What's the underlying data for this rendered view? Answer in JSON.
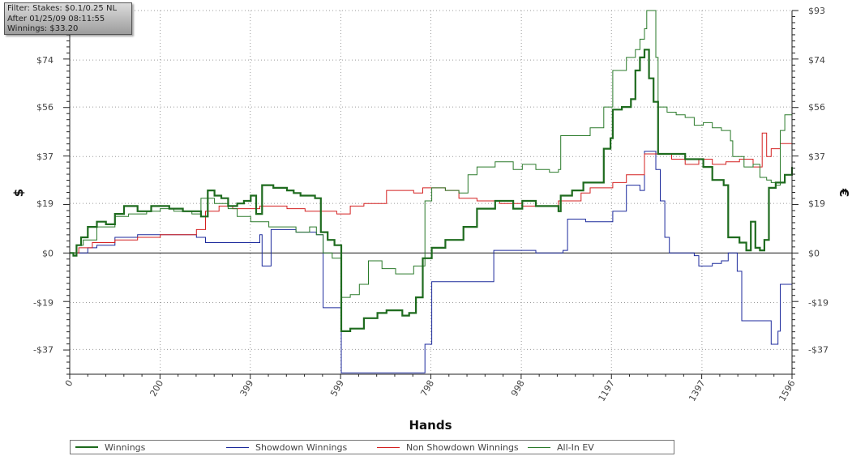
{
  "info_box": {
    "filter": "Filter: Stakes: $0.1/0.25 NL",
    "after": "After 01/25/09 08:11:55",
    "winnings": "Winnings: $33.20"
  },
  "chart_data": {
    "type": "line",
    "xlabel": "Hands",
    "ylabel_left": "$",
    "ylabel_right": "€",
    "xlim": [
      0,
      1596
    ],
    "ylim": [
      -46.5,
      93
    ],
    "x_ticks": [
      0,
      200,
      399,
      599,
      798,
      998,
      1197,
      1397,
      1596
    ],
    "y_ticks": [
      -37,
      -19,
      0,
      19,
      37,
      56,
      74,
      93
    ],
    "y_tick_labels": [
      "-$37",
      "-$19",
      "$0",
      "$19",
      "$37",
      "$56",
      "$74",
      "$93"
    ],
    "grid": true,
    "legend_position": "bottom",
    "series": [
      {
        "name": "Winnings",
        "color": "#1e6b1e",
        "points": [
          [
            0,
            0
          ],
          [
            8,
            -1
          ],
          [
            15,
            3
          ],
          [
            25,
            6
          ],
          [
            40,
            10
          ],
          [
            60,
            12
          ],
          [
            80,
            11
          ],
          [
            100,
            15
          ],
          [
            120,
            18
          ],
          [
            150,
            16
          ],
          [
            180,
            18
          ],
          [
            200,
            18
          ],
          [
            220,
            17
          ],
          [
            250,
            16
          ],
          [
            290,
            14
          ],
          [
            305,
            24
          ],
          [
            320,
            22
          ],
          [
            335,
            21
          ],
          [
            350,
            18
          ],
          [
            370,
            19
          ],
          [
            385,
            20
          ],
          [
            400,
            22
          ],
          [
            412,
            15
          ],
          [
            425,
            26
          ],
          [
            450,
            25
          ],
          [
            480,
            24
          ],
          [
            495,
            23
          ],
          [
            510,
            22
          ],
          [
            542,
            21
          ],
          [
            555,
            8
          ],
          [
            570,
            5
          ],
          [
            585,
            3
          ],
          [
            600,
            -30
          ],
          [
            620,
            -29
          ],
          [
            650,
            -25
          ],
          [
            680,
            -23
          ],
          [
            700,
            -22
          ],
          [
            735,
            -24
          ],
          [
            750,
            -23
          ],
          [
            765,
            -17
          ],
          [
            780,
            -2
          ],
          [
            800,
            2
          ],
          [
            830,
            5
          ],
          [
            845,
            5
          ],
          [
            870,
            10
          ],
          [
            900,
            17
          ],
          [
            940,
            20
          ],
          [
            980,
            17
          ],
          [
            1000,
            20
          ],
          [
            1030,
            18
          ],
          [
            1080,
            16
          ],
          [
            1085,
            22
          ],
          [
            1110,
            24
          ],
          [
            1135,
            27
          ],
          [
            1160,
            27
          ],
          [
            1180,
            40
          ],
          [
            1195,
            44
          ],
          [
            1200,
            55
          ],
          [
            1220,
            56
          ],
          [
            1240,
            59
          ],
          [
            1250,
            70
          ],
          [
            1260,
            75
          ],
          [
            1270,
            78
          ],
          [
            1280,
            67
          ],
          [
            1290,
            58
          ],
          [
            1300,
            38
          ],
          [
            1340,
            38
          ],
          [
            1360,
            36
          ],
          [
            1400,
            33
          ],
          [
            1420,
            28
          ],
          [
            1445,
            26
          ],
          [
            1455,
            6
          ],
          [
            1480,
            4
          ],
          [
            1495,
            1
          ],
          [
            1505,
            12
          ],
          [
            1515,
            2
          ],
          [
            1525,
            1
          ],
          [
            1535,
            5
          ],
          [
            1545,
            25
          ],
          [
            1560,
            27
          ],
          [
            1580,
            30
          ],
          [
            1596,
            33
          ]
        ]
      },
      {
        "name": "Showdown Winnings",
        "color": "#1c2a9c",
        "points": [
          [
            0,
            0
          ],
          [
            40,
            2
          ],
          [
            60,
            3
          ],
          [
            100,
            6
          ],
          [
            150,
            7
          ],
          [
            200,
            7
          ],
          [
            280,
            6
          ],
          [
            300,
            4
          ],
          [
            350,
            4
          ],
          [
            400,
            4
          ],
          [
            420,
            7
          ],
          [
            425,
            -5
          ],
          [
            440,
            -5
          ],
          [
            445,
            9
          ],
          [
            480,
            9
          ],
          [
            500,
            8
          ],
          [
            520,
            8
          ],
          [
            545,
            7
          ],
          [
            560,
            -21
          ],
          [
            580,
            -21
          ],
          [
            595,
            -21
          ],
          [
            600,
            -46
          ],
          [
            700,
            -46
          ],
          [
            750,
            -46
          ],
          [
            775,
            -46
          ],
          [
            785,
            -35
          ],
          [
            800,
            -11
          ],
          [
            900,
            -11
          ],
          [
            920,
            -11
          ],
          [
            937,
            1
          ],
          [
            980,
            1
          ],
          [
            1030,
            0
          ],
          [
            1080,
            0
          ],
          [
            1090,
            1
          ],
          [
            1100,
            13
          ],
          [
            1140,
            12
          ],
          [
            1190,
            12
          ],
          [
            1200,
            16
          ],
          [
            1230,
            26
          ],
          [
            1240,
            26
          ],
          [
            1260,
            24
          ],
          [
            1270,
            39
          ],
          [
            1290,
            39
          ],
          [
            1295,
            32
          ],
          [
            1305,
            20
          ],
          [
            1315,
            6
          ],
          [
            1325,
            0
          ],
          [
            1360,
            0
          ],
          [
            1380,
            -1
          ],
          [
            1390,
            -5
          ],
          [
            1420,
            -4
          ],
          [
            1440,
            -3
          ],
          [
            1455,
            0
          ],
          [
            1465,
            0
          ],
          [
            1475,
            -7
          ],
          [
            1485,
            -26
          ],
          [
            1510,
            -26
          ],
          [
            1540,
            -26
          ],
          [
            1550,
            -35
          ],
          [
            1565,
            -30
          ],
          [
            1570,
            -12
          ],
          [
            1596,
            -12
          ]
        ]
      },
      {
        "name": "Non Showdown Winnings",
        "color": "#d42020",
        "points": [
          [
            0,
            0
          ],
          [
            20,
            2
          ],
          [
            50,
            4
          ],
          [
            100,
            5
          ],
          [
            150,
            6
          ],
          [
            200,
            7
          ],
          [
            280,
            9
          ],
          [
            300,
            16
          ],
          [
            330,
            18
          ],
          [
            360,
            17
          ],
          [
            400,
            17
          ],
          [
            420,
            18
          ],
          [
            480,
            17
          ],
          [
            520,
            16
          ],
          [
            560,
            16
          ],
          [
            590,
            15
          ],
          [
            620,
            18
          ],
          [
            650,
            19
          ],
          [
            700,
            24
          ],
          [
            760,
            23
          ],
          [
            780,
            25
          ],
          [
            800,
            25
          ],
          [
            830,
            24
          ],
          [
            860,
            21
          ],
          [
            900,
            20
          ],
          [
            950,
            19
          ],
          [
            1000,
            18
          ],
          [
            1030,
            18
          ],
          [
            1060,
            18
          ],
          [
            1080,
            20
          ],
          [
            1110,
            20
          ],
          [
            1130,
            23
          ],
          [
            1150,
            25
          ],
          [
            1180,
            25
          ],
          [
            1200,
            27
          ],
          [
            1230,
            30
          ],
          [
            1270,
            38
          ],
          [
            1300,
            38
          ],
          [
            1330,
            36
          ],
          [
            1360,
            34
          ],
          [
            1390,
            36
          ],
          [
            1420,
            34
          ],
          [
            1450,
            35
          ],
          [
            1470,
            35
          ],
          [
            1480,
            36
          ],
          [
            1510,
            33
          ],
          [
            1530,
            46
          ],
          [
            1540,
            37
          ],
          [
            1550,
            40
          ],
          [
            1570,
            42
          ],
          [
            1596,
            46
          ]
        ]
      },
      {
        "name": "All-In EV",
        "color": "#2a7a2a",
        "points": [
          [
            0,
            0
          ],
          [
            15,
            3
          ],
          [
            30,
            5
          ],
          [
            60,
            10
          ],
          [
            100,
            14
          ],
          [
            130,
            15
          ],
          [
            170,
            16
          ],
          [
            200,
            17
          ],
          [
            230,
            16
          ],
          [
            270,
            15
          ],
          [
            290,
            21
          ],
          [
            320,
            19
          ],
          [
            350,
            17
          ],
          [
            370,
            14
          ],
          [
            400,
            12
          ],
          [
            420,
            12
          ],
          [
            440,
            10
          ],
          [
            480,
            10
          ],
          [
            500,
            8
          ],
          [
            530,
            10
          ],
          [
            545,
            7
          ],
          [
            560,
            0
          ],
          [
            580,
            -2
          ],
          [
            600,
            -17
          ],
          [
            620,
            -16
          ],
          [
            640,
            -12
          ],
          [
            660,
            -3
          ],
          [
            690,
            -6
          ],
          [
            720,
            -8
          ],
          [
            760,
            -5
          ],
          [
            775,
            -5
          ],
          [
            785,
            20
          ],
          [
            800,
            25
          ],
          [
            830,
            24
          ],
          [
            860,
            23
          ],
          [
            880,
            30
          ],
          [
            900,
            33
          ],
          [
            940,
            35
          ],
          [
            980,
            32
          ],
          [
            1000,
            34
          ],
          [
            1030,
            32
          ],
          [
            1060,
            31
          ],
          [
            1080,
            32
          ],
          [
            1085,
            45
          ],
          [
            1120,
            45
          ],
          [
            1150,
            48
          ],
          [
            1180,
            56
          ],
          [
            1200,
            70
          ],
          [
            1230,
            75
          ],
          [
            1250,
            78
          ],
          [
            1260,
            82
          ],
          [
            1270,
            86
          ],
          [
            1275,
            93
          ],
          [
            1285,
            93
          ],
          [
            1295,
            75
          ],
          [
            1300,
            56
          ],
          [
            1320,
            54
          ],
          [
            1340,
            53
          ],
          [
            1360,
            52
          ],
          [
            1380,
            49
          ],
          [
            1400,
            50
          ],
          [
            1420,
            48
          ],
          [
            1440,
            47
          ],
          [
            1460,
            43
          ],
          [
            1465,
            37
          ],
          [
            1490,
            33
          ],
          [
            1510,
            34
          ],
          [
            1525,
            29
          ],
          [
            1540,
            28
          ],
          [
            1550,
            27
          ],
          [
            1560,
            26
          ],
          [
            1570,
            47
          ],
          [
            1580,
            53
          ],
          [
            1596,
            56
          ]
        ]
      }
    ]
  }
}
